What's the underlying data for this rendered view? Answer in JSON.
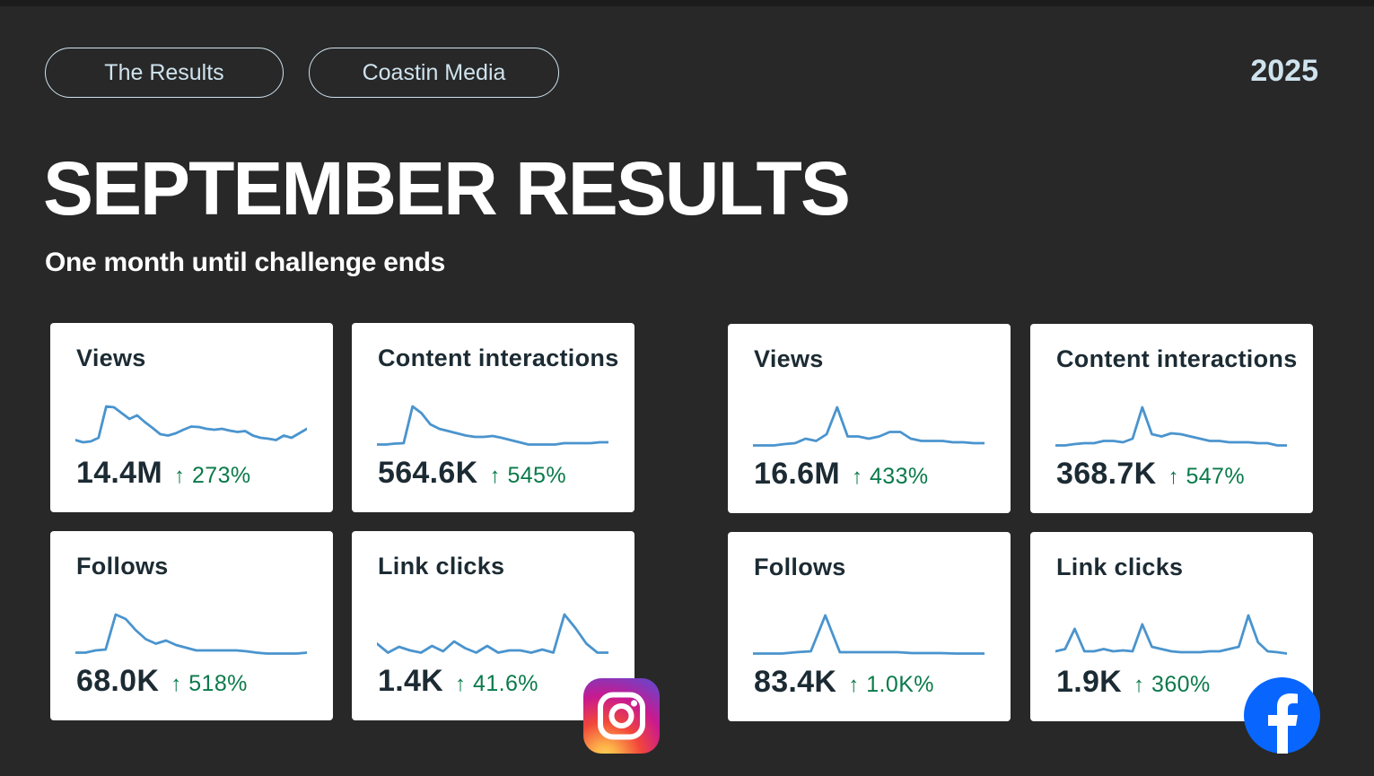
{
  "header": {
    "pill_results": "The Results",
    "pill_brand": "Coastin Media",
    "year": "2025"
  },
  "title": "SEPTEMBER RESULTS",
  "subtitle": "One month until challenge ends",
  "colors": {
    "background": "#282828",
    "pill_text": "#cfe3ee",
    "card_background": "#ffffff",
    "card_text": "#1c2b33",
    "sparkline": "#4a94ce",
    "positive_change": "#0a7a4a",
    "facebook_blue": "#0866ff"
  },
  "platforms": [
    {
      "name": "instagram",
      "icon": "instagram-icon",
      "cards": [
        {
          "label": "Views",
          "value": "14.4M",
          "arrow": "↑",
          "change": "273%",
          "trend": [
            0.15,
            0.1,
            0.12,
            0.2,
            0.9,
            0.88,
            0.75,
            0.62,
            0.7,
            0.55,
            0.42,
            0.28,
            0.25,
            0.3,
            0.38,
            0.45,
            0.44,
            0.4,
            0.38,
            0.4,
            0.36,
            0.33,
            0.35,
            0.25,
            0.2,
            0.18,
            0.15,
            0.25,
            0.2,
            0.3,
            0.4
          ]
        },
        {
          "label": "Content interactions",
          "value": "564.6K",
          "arrow": "↑",
          "change": "545%",
          "trend": [
            0.05,
            0.05,
            0.07,
            0.08,
            0.9,
            0.75,
            0.5,
            0.4,
            0.35,
            0.3,
            0.25,
            0.22,
            0.22,
            0.24,
            0.2,
            0.15,
            0.1,
            0.05,
            0.05,
            0.05,
            0.05,
            0.08,
            0.08,
            0.08,
            0.08,
            0.1,
            0.1
          ]
        },
        {
          "label": "Follows",
          "value": "68.0K",
          "arrow": "↑",
          "change": "518%",
          "trend": [
            0.05,
            0.05,
            0.1,
            0.12,
            0.9,
            0.8,
            0.55,
            0.35,
            0.25,
            0.32,
            0.22,
            0.16,
            0.1,
            0.1,
            0.1,
            0.1,
            0.1,
            0.08,
            0.05,
            0.03,
            0.03,
            0.03,
            0.03,
            0.05
          ]
        },
        {
          "label": "Link clicks",
          "value": "1.4K",
          "arrow": "↑",
          "change": "41.6%",
          "trend": [
            0.25,
            0.05,
            0.18,
            0.1,
            0.05,
            0.2,
            0.08,
            0.3,
            0.15,
            0.05,
            0.2,
            0.05,
            0.1,
            0.1,
            0.05,
            0.12,
            0.05,
            0.9,
            0.6,
            0.25,
            0.05,
            0.05
          ]
        }
      ]
    },
    {
      "name": "facebook",
      "icon": "facebook-icon",
      "cards": [
        {
          "label": "Views",
          "value": "16.6M",
          "arrow": "↑",
          "change": "433%",
          "trend": [
            0.05,
            0.05,
            0.05,
            0.08,
            0.1,
            0.2,
            0.15,
            0.3,
            0.9,
            0.25,
            0.25,
            0.2,
            0.25,
            0.35,
            0.35,
            0.2,
            0.15,
            0.15,
            0.15,
            0.12,
            0.12,
            0.1,
            0.1
          ]
        },
        {
          "label": "Content interactions",
          "value": "368.7K",
          "arrow": "↑",
          "change": "547%",
          "trend": [
            0.05,
            0.05,
            0.08,
            0.1,
            0.1,
            0.15,
            0.15,
            0.12,
            0.2,
            0.9,
            0.3,
            0.25,
            0.32,
            0.3,
            0.25,
            0.2,
            0.15,
            0.15,
            0.12,
            0.12,
            0.12,
            0.1,
            0.1,
            0.05,
            0.05
          ]
        },
        {
          "label": "Follows",
          "value": "83.4K",
          "arrow": "↑",
          "change": "1.0K%",
          "trend": [
            0.05,
            0.05,
            0.05,
            0.08,
            0.1,
            0.9,
            0.08,
            0.08,
            0.08,
            0.08,
            0.08,
            0.06,
            0.06,
            0.06,
            0.05,
            0.05,
            0.05
          ]
        },
        {
          "label": "Link clicks",
          "value": "1.9K",
          "arrow": "↑",
          "change": "360%",
          "trend": [
            0.1,
            0.15,
            0.6,
            0.1,
            0.1,
            0.15,
            0.1,
            0.12,
            0.1,
            0.7,
            0.2,
            0.15,
            0.1,
            0.08,
            0.08,
            0.08,
            0.1,
            0.1,
            0.15,
            0.2,
            0.9,
            0.3,
            0.1,
            0.08,
            0.05
          ]
        }
      ]
    }
  ]
}
